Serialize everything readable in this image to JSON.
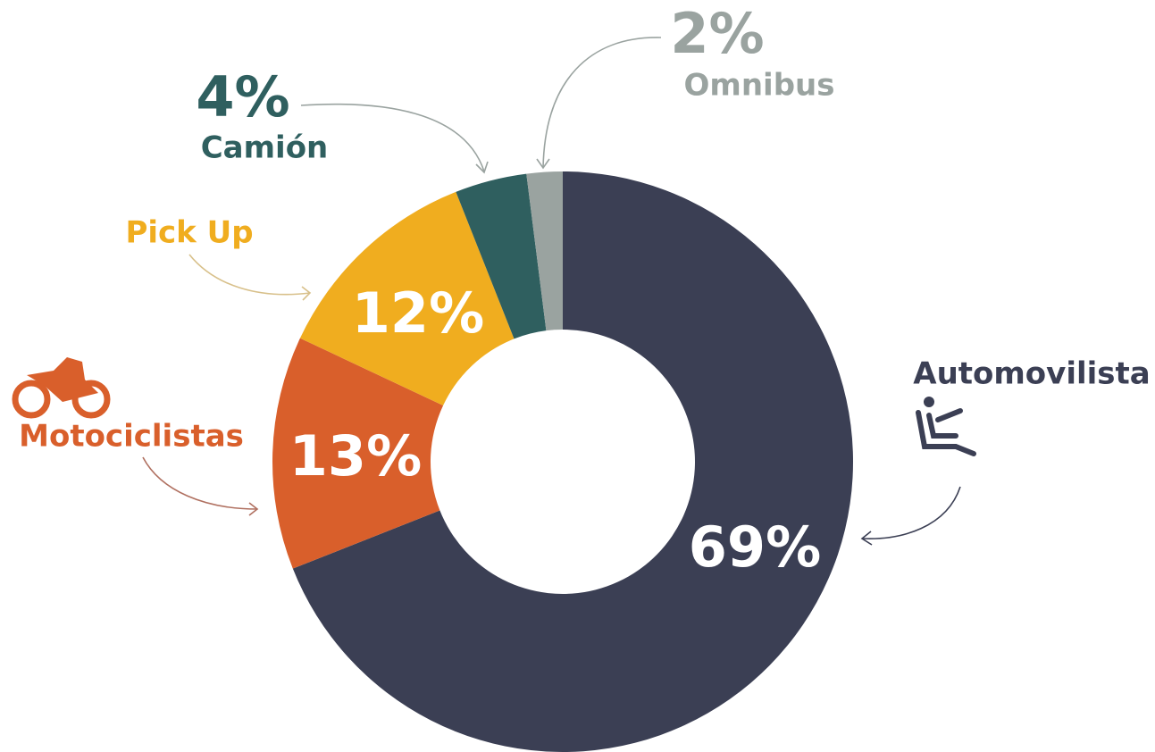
{
  "chart_data": {
    "type": "donut",
    "categories": [
      "Automovilista",
      "Motociclistas",
      "Pick Up",
      "Camión",
      "Omnibus"
    ],
    "values": [
      69,
      13,
      12,
      4,
      2
    ],
    "value_labels": [
      "69%",
      "13%",
      "12%",
      "4%",
      "2%"
    ],
    "colors": [
      "#3b3f54",
      "#d95f2b",
      "#f0ad1f",
      "#2f5f5f",
      "#9aa3a0"
    ]
  }
}
